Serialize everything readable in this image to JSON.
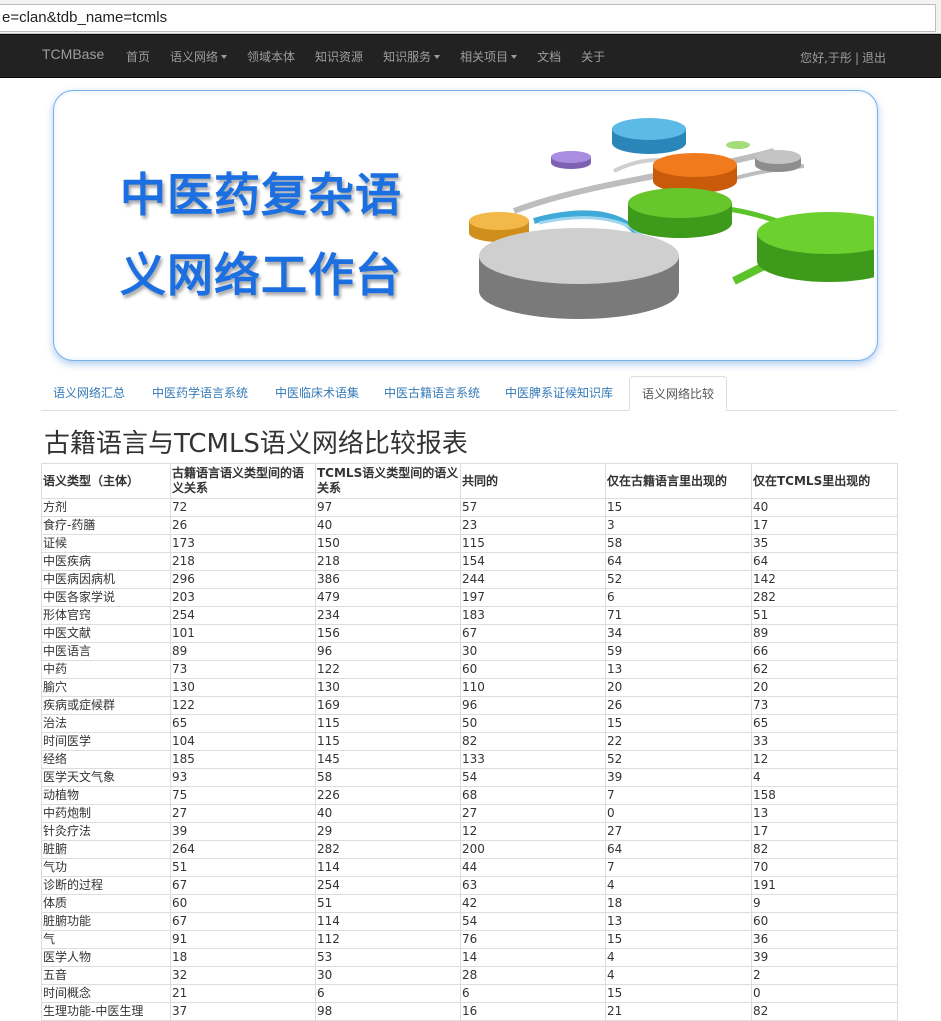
{
  "address_bar": {
    "url_text": "e=clan&tdb_name=tcmls"
  },
  "navbar": {
    "brand": "TCMBase",
    "items": [
      {
        "label": "首页",
        "dropdown": false
      },
      {
        "label": "语义网络",
        "dropdown": true
      },
      {
        "label": "领域本体",
        "dropdown": false
      },
      {
        "label": "知识资源",
        "dropdown": false
      },
      {
        "label": "知识服务",
        "dropdown": true
      },
      {
        "label": "相关项目",
        "dropdown": true
      },
      {
        "label": "文档",
        "dropdown": false
      },
      {
        "label": "关于",
        "dropdown": false
      }
    ],
    "greeting": "您好,于彤",
    "separator": "|",
    "logout": "退出"
  },
  "banner": {
    "line1": "中医药复杂语",
    "line2": "义网络工作台",
    "title_color": "#1b6fe0"
  },
  "tabs": [
    {
      "label": "语义网络汇总",
      "active": false
    },
    {
      "label": "中医药学语言系统",
      "active": false
    },
    {
      "label": "中医临床术语集",
      "active": false
    },
    {
      "label": "中医古籍语言系统",
      "active": false
    },
    {
      "label": "中医脾系证候知识库",
      "active": false
    },
    {
      "label": "语义网络比较",
      "active": true
    }
  ],
  "page_title": "古籍语言与TCMLS语义网络比较报表",
  "table": {
    "headers": [
      "语义类型（主体）",
      "古籍语言语义类型间的语义关系",
      "TCMLS语义类型间的语义关系",
      "共同的",
      "仅在古籍语言里出现的",
      "仅在TCMLS里出现的"
    ],
    "rows": [
      [
        "方剂",
        "72",
        "97",
        "57",
        "15",
        "40"
      ],
      [
        "食疗-药膳",
        "26",
        "40",
        "23",
        "3",
        "17"
      ],
      [
        "证候",
        "173",
        "150",
        "115",
        "58",
        "35"
      ],
      [
        "中医疾病",
        "218",
        "218",
        "154",
        "64",
        "64"
      ],
      [
        "中医病因病机",
        "296",
        "386",
        "244",
        "52",
        "142"
      ],
      [
        "中医各家学说",
        "203",
        "479",
        "197",
        "6",
        "282"
      ],
      [
        "形体官窍",
        "254",
        "234",
        "183",
        "71",
        "51"
      ],
      [
        "中医文献",
        "101",
        "156",
        "67",
        "34",
        "89"
      ],
      [
        "中医语言",
        "89",
        "96",
        "30",
        "59",
        "66"
      ],
      [
        "中药",
        "73",
        "122",
        "60",
        "13",
        "62"
      ],
      [
        "腧穴",
        "130",
        "130",
        "110",
        "20",
        "20"
      ],
      [
        "疾病或症候群",
        "122",
        "169",
        "96",
        "26",
        "73"
      ],
      [
        "治法",
        "65",
        "115",
        "50",
        "15",
        "65"
      ],
      [
        "时间医学",
        "104",
        "115",
        "82",
        "22",
        "33"
      ],
      [
        "经络",
        "185",
        "145",
        "133",
        "52",
        "12"
      ],
      [
        "医学天文气象",
        "93",
        "58",
        "54",
        "39",
        "4"
      ],
      [
        "动植物",
        "75",
        "226",
        "68",
        "7",
        "158"
      ],
      [
        "中药炮制",
        "27",
        "40",
        "27",
        "0",
        "13"
      ],
      [
        "针灸疗法",
        "39",
        "29",
        "12",
        "27",
        "17"
      ],
      [
        "脏腑",
        "264",
        "282",
        "200",
        "64",
        "82"
      ],
      [
        "气功",
        "51",
        "114",
        "44",
        "7",
        "70"
      ],
      [
        "诊断的过程",
        "67",
        "254",
        "63",
        "4",
        "191"
      ],
      [
        "体质",
        "60",
        "51",
        "42",
        "18",
        "9"
      ],
      [
        "脏腑功能",
        "67",
        "114",
        "54",
        "13",
        "60"
      ],
      [
        "气",
        "91",
        "112",
        "76",
        "15",
        "36"
      ],
      [
        "医学人物",
        "18",
        "53",
        "14",
        "4",
        "39"
      ],
      [
        "五音",
        "32",
        "30",
        "28",
        "4",
        "2"
      ],
      [
        "时间概念",
        "21",
        "6",
        "6",
        "15",
        "0"
      ],
      [
        "生理功能-中医生理",
        "37",
        "98",
        "16",
        "21",
        "82"
      ]
    ]
  }
}
